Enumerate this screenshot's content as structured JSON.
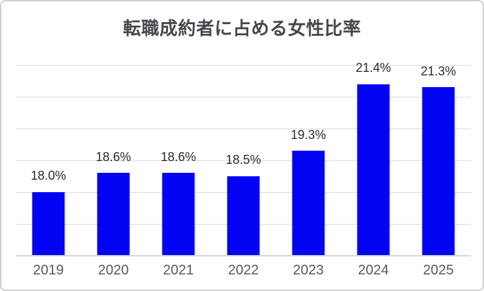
{
  "colors": {
    "bar": "#0404f5",
    "title_text": "#46484d",
    "data_label": "#2b2b2b",
    "axis_label": "#595959",
    "gridline": "#dadada",
    "axis_line": "#d6d6d6",
    "frame_border": "#cfcfcf",
    "background": "#ffffff"
  },
  "chart_data": {
    "type": "bar",
    "title": "転職成約者に占める女性比率",
    "categories": [
      "2019",
      "2020",
      "2021",
      "2022",
      "2023",
      "2024",
      "2025"
    ],
    "values": [
      18.0,
      18.6,
      18.6,
      18.5,
      19.3,
      21.4,
      21.3
    ],
    "data_labels": [
      "18.0%",
      "18.6%",
      "18.6%",
      "18.5%",
      "19.3%",
      "21.4%",
      "21.3%"
    ],
    "xlabel": "",
    "ylabel": "",
    "ylim": [
      16,
      22
    ],
    "gridline_step": 1,
    "grid": true,
    "legend": "none",
    "y_tick_labels_visible": false
  }
}
